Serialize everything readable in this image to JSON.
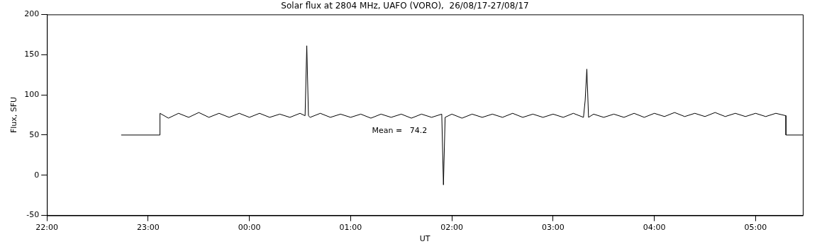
{
  "chart_data": {
    "type": "line",
    "title": "Solar flux at 2804 MHz, UAFO (VORO),  26/08/17-27/08/17",
    "xlabel": "UT",
    "ylabel": "Flux, SFU",
    "annotations": [
      "Mean =   74.2"
    ],
    "series": [
      {
        "color": "#000000",
        "x": [
          "--08-26T22:44",
          "--08-26T23:07",
          "--08-26T23:07",
          "--08-26T23:12",
          "--08-26T23:18",
          "--08-26T23:24",
          "--08-26T23:30",
          "--08-26T23:36",
          "--08-26T23:42",
          "--08-26T23:48",
          "--08-26T23:54",
          "--08-27T00:00",
          "--08-27T00:06",
          "--08-27T00:12",
          "--08-27T00:18",
          "--08-27T00:24",
          "--08-27T00:30",
          "--08-27T00:33",
          "--08-27T00:34",
          "--08-27T00:35",
          "--08-27T00:36",
          "--08-27T00:42",
          "--08-27T00:48",
          "--08-27T00:54",
          "--08-27T01:00",
          "--08-27T01:06",
          "--08-27T01:12",
          "--08-27T01:18",
          "--08-27T01:24",
          "--08-27T01:30",
          "--08-27T01:36",
          "--08-27T01:42",
          "--08-27T01:48",
          "--08-27T01:54",
          "--08-27T01:55",
          "--08-27T01:56",
          "--08-27T02:00",
          "--08-27T02:06",
          "--08-27T02:12",
          "--08-27T02:18",
          "--08-27T02:24",
          "--08-27T02:30",
          "--08-27T02:36",
          "--08-27T02:42",
          "--08-27T02:48",
          "--08-27T02:54",
          "--08-27T03:00",
          "--08-27T03:06",
          "--08-27T03:12",
          "--08-27T03:18",
          "--08-27T03:19",
          "--08-27T03:20",
          "--08-27T03:21",
          "--08-27T03:24",
          "--08-27T03:30",
          "--08-27T03:36",
          "--08-27T03:42",
          "--08-27T03:48",
          "--08-27T03:54",
          "--08-27T04:00",
          "--08-27T04:06",
          "--08-27T04:12",
          "--08-27T04:18",
          "--08-27T04:24",
          "--08-27T04:30",
          "--08-27T04:36",
          "--08-27T04:42",
          "--08-27T04:48",
          "--08-27T04:54",
          "--08-27T05:00",
          "--08-27T05:06",
          "--08-27T05:12",
          "--08-27T05:18",
          "--08-27T05:18",
          "--08-27T05:28"
        ],
        "values": [
          50,
          50,
          77,
          71,
          77,
          72,
          78,
          72,
          77,
          72,
          77,
          72,
          77,
          72,
          76,
          72,
          77,
          74,
          161,
          74,
          72,
          77,
          72,
          76,
          72,
          76,
          71,
          76,
          72,
          76,
          71,
          76,
          72,
          76,
          -12,
          72,
          76,
          71,
          76,
          72,
          76,
          72,
          77,
          72,
          76,
          72,
          76,
          72,
          77,
          72,
          93,
          132,
          72,
          76,
          72,
          76,
          72,
          77,
          72,
          77,
          73,
          78,
          73,
          77,
          73,
          78,
          73,
          77,
          73,
          77,
          73,
          77,
          74,
          50,
          50
        ]
      }
    ],
    "xlim": [
      "--08-26T22:00",
      "--08-27T05:28"
    ],
    "xticks": [
      {
        "value": "--08-26T22:00",
        "label": "22:00"
      },
      {
        "value": "--08-26T23:00",
        "label": "23:00"
      },
      {
        "value": "--08-27T00:00",
        "label": "00:00"
      },
      {
        "value": "--08-27T01:00",
        "label": "01:00"
      },
      {
        "value": "--08-27T02:00",
        "label": "02:00"
      },
      {
        "value": "--08-27T03:00",
        "label": "03:00"
      },
      {
        "value": "--08-27T04:00",
        "label": "04:00"
      },
      {
        "value": "--08-27T05:00",
        "label": "05:00"
      }
    ],
    "ylim": [
      -50,
      200
    ],
    "yticks": [
      -50,
      0,
      50,
      100,
      150,
      200
    ],
    "grid": false,
    "legend": false,
    "marker": "none",
    "line_style": "solid"
  }
}
